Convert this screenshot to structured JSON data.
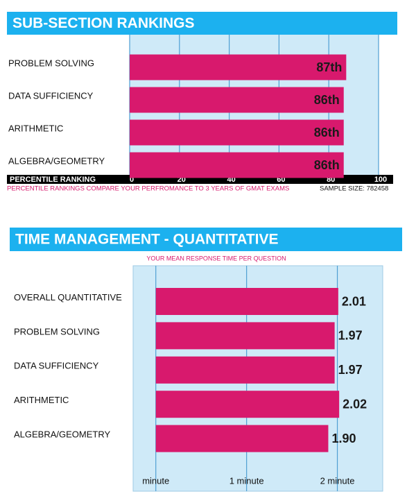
{
  "chart_data": [
    {
      "type": "bar",
      "orientation": "horizontal",
      "title": "SUB-SECTION RANKINGS",
      "categories": [
        "PROBLEM SOLVING",
        "DATA SUFFICIENCY",
        "ARITHMETIC",
        "ALGEBRA/GEOMETRY"
      ],
      "values": [
        87,
        86,
        86,
        86
      ],
      "value_labels": [
        "87th",
        "86th",
        "86th",
        "86th"
      ],
      "color": "#d8196d",
      "xlim": [
        0,
        100
      ],
      "xticks": [
        0,
        20,
        40,
        60,
        80,
        100
      ],
      "grid": true,
      "x_label": "PERCENTILE RANKING",
      "note": "PERCENTILE RANKINGS COMPARE YOUR PERFROMANCE TO 3 YEARS OF GMAT EXAMS",
      "sample_size": "SAMPLE SIZE: 782458"
    },
    {
      "type": "bar",
      "orientation": "horizontal",
      "title": "TIME MANAGEMENT - QUANTITATIVE",
      "subtitle": "YOUR MEAN RESPONSE TIME PER QUESTION",
      "categories": [
        "OVERALL QUANTITATIVE",
        "PROBLEM SOLVING",
        "DATA SUFFICIENCY",
        "ARITHMETIC",
        "ALGEBRA/GEOMETRY"
      ],
      "values": [
        2.01,
        1.97,
        1.97,
        2.02,
        1.9
      ],
      "value_labels": [
        "2.01",
        "1.97",
        "1.97",
        "2.02",
        "1.90"
      ],
      "color": "#d8196d",
      "xlim": [
        -0.25,
        2.5
      ],
      "xticks": [
        {
          "value": 0,
          "label": "minute"
        },
        {
          "value": 1,
          "label": "1 minute"
        },
        {
          "value": 2,
          "label": "2 minute"
        }
      ],
      "grid": true
    }
  ]
}
